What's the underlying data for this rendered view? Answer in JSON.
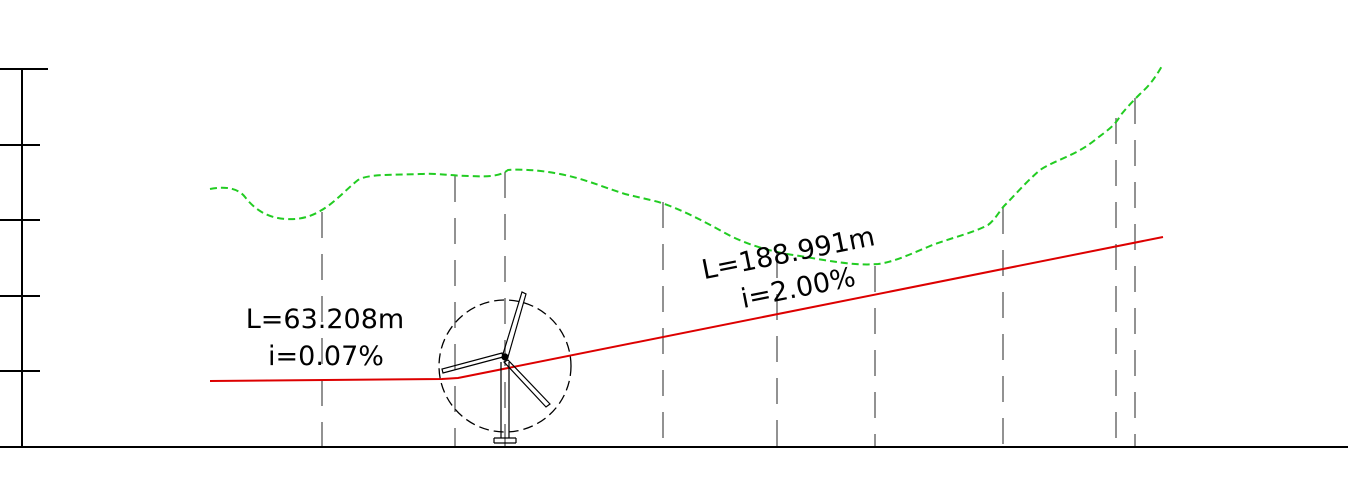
{
  "labels": {
    "segment_1": {
      "length": "L=63.208m",
      "grade": "i=0.07%"
    },
    "segment_2": {
      "length": "L=188.991m",
      "grade": "i=2.00%"
    }
  },
  "colors": {
    "ground_line": "#22cc22",
    "design_line": "#dd0000",
    "linework": "#000000",
    "station_lines": "#777777",
    "background": "#ffffff"
  },
  "icons": {
    "turbine": "wind-turbine-icon"
  }
}
